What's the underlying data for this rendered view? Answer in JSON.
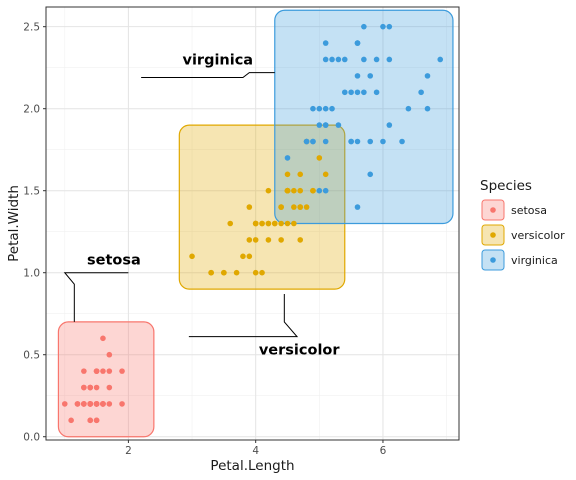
{
  "chart_data": {
    "type": "scatter",
    "xlabel": "Petal.Length",
    "ylabel": "Petal.Width",
    "xlim": [
      0.705,
      7.195
    ],
    "ylim": [
      -0.02,
      2.62
    ],
    "x_ticks": [
      2,
      4,
      6
    ],
    "y_ticks": [
      0.0,
      0.5,
      1.0,
      1.5,
      2.0,
      2.5
    ],
    "x_tick_labels": [
      "2",
      "4",
      "6"
    ],
    "y_tick_labels": [
      "0.0",
      "0.5",
      "1.0",
      "1.5",
      "2.0",
      "2.5"
    ],
    "grid": true,
    "legend_position": "right",
    "legend_title": "Species",
    "series": [
      {
        "name": "setosa",
        "color": "#F8766D",
        "x": [
          1.4,
          1.4,
          1.3,
          1.5,
          1.4,
          1.7,
          1.4,
          1.5,
          1.4,
          1.5,
          1.5,
          1.6,
          1.4,
          1.1,
          1.2,
          1.5,
          1.3,
          1.4,
          1.7,
          1.5,
          1.7,
          1.5,
          1.0,
          1.7,
          1.9,
          1.6,
          1.6,
          1.5,
          1.4,
          1.6,
          1.6,
          1.5,
          1.5,
          1.4,
          1.5,
          1.2,
          1.3,
          1.4,
          1.3,
          1.5,
          1.3,
          1.3,
          1.3,
          1.6,
          1.9,
          1.4,
          1.6,
          1.4,
          1.5,
          1.4
        ],
        "y": [
          0.2,
          0.2,
          0.2,
          0.2,
          0.2,
          0.4,
          0.3,
          0.2,
          0.2,
          0.1,
          0.2,
          0.2,
          0.1,
          0.1,
          0.2,
          0.4,
          0.4,
          0.3,
          0.3,
          0.3,
          0.2,
          0.4,
          0.2,
          0.5,
          0.2,
          0.2,
          0.4,
          0.2,
          0.2,
          0.2,
          0.2,
          0.4,
          0.1,
          0.2,
          0.2,
          0.2,
          0.2,
          0.1,
          0.2,
          0.2,
          0.3,
          0.3,
          0.2,
          0.6,
          0.4,
          0.3,
          0.2,
          0.2,
          0.2,
          0.2
        ],
        "hull_box": {
          "x": [
            0.9,
            2.4
          ],
          "y": [
            0.0,
            0.7
          ]
        }
      },
      {
        "name": "versicolor",
        "color": "#E0A800",
        "x": [
          4.7,
          4.5,
          4.9,
          4.0,
          4.6,
          4.5,
          4.7,
          3.3,
          4.6,
          3.9,
          3.5,
          4.2,
          4.0,
          4.7,
          3.6,
          4.4,
          4.5,
          4.1,
          4.5,
          3.9,
          4.8,
          4.0,
          4.9,
          4.7,
          4.3,
          4.4,
          4.8,
          5.0,
          4.5,
          3.5,
          3.8,
          3.7,
          3.9,
          5.1,
          4.5,
          4.5,
          4.7,
          4.4,
          4.1,
          4.0,
          4.4,
          4.6,
          4.0,
          3.3,
          4.2,
          4.2,
          4.2,
          4.3,
          3.0,
          4.1
        ],
        "y": [
          1.4,
          1.5,
          1.5,
          1.3,
          1.5,
          1.3,
          1.6,
          1.0,
          1.3,
          1.4,
          1.0,
          1.5,
          1.0,
          1.4,
          1.3,
          1.4,
          1.5,
          1.0,
          1.5,
          1.1,
          1.8,
          1.3,
          1.5,
          1.2,
          1.3,
          1.4,
          1.4,
          1.7,
          1.5,
          1.0,
          1.1,
          1.0,
          1.2,
          1.6,
          1.5,
          1.6,
          1.5,
          1.3,
          1.3,
          1.3,
          1.2,
          1.4,
          1.2,
          1.0,
          1.3,
          1.2,
          1.3,
          1.3,
          1.1,
          1.3
        ],
        "hull_box": {
          "x": [
            2.8,
            5.4
          ],
          "y": [
            0.9,
            1.9
          ]
        }
      },
      {
        "name": "virginica",
        "color": "#3C9BDC",
        "x": [
          6.0,
          5.1,
          5.9,
          5.6,
          5.8,
          6.6,
          4.5,
          6.3,
          5.8,
          6.1,
          5.1,
          5.3,
          5.5,
          5.0,
          5.1,
          5.3,
          5.5,
          6.7,
          6.9,
          5.0,
          5.7,
          4.9,
          6.7,
          4.9,
          5.7,
          6.0,
          4.8,
          4.9,
          5.6,
          5.8,
          6.1,
          6.4,
          5.6,
          5.1,
          5.6,
          6.1,
          5.6,
          5.5,
          4.8,
          5.4,
          5.6,
          5.1,
          5.1,
          5.9,
          5.7,
          5.2,
          5.0,
          5.2,
          5.4,
          5.1
        ],
        "y": [
          2.5,
          1.9,
          2.1,
          1.8,
          2.2,
          2.1,
          1.7,
          1.8,
          1.8,
          2.5,
          2.0,
          1.9,
          2.1,
          2.0,
          2.4,
          2.3,
          1.8,
          2.2,
          2.3,
          1.5,
          2.3,
          2.0,
          2.0,
          1.8,
          2.1,
          1.8,
          1.8,
          1.8,
          2.1,
          1.6,
          1.9,
          2.0,
          2.2,
          1.5,
          1.4,
          2.3,
          2.4,
          1.8,
          1.8,
          2.1,
          2.4,
          2.3,
          1.9,
          2.3,
          2.5,
          2.3,
          1.9,
          2.0,
          2.3,
          1.8
        ],
        "hull_box": {
          "x": [
            4.3,
            7.1
          ],
          "y": [
            1.3,
            2.6
          ]
        }
      }
    ],
    "annotations": [
      {
        "text": "setosa",
        "label_at": [
          1.35,
          1.05
        ],
        "leader": [
          [
            2.0,
            1.0
          ],
          [
            1.0,
            1.0
          ],
          [
            1.15,
            0.93
          ],
          [
            1.15,
            0.7
          ]
        ]
      },
      {
        "text": "versicolor",
        "label_at": [
          4.05,
          0.5
        ],
        "leader": [
          [
            2.95,
            0.61
          ],
          [
            4.65,
            0.61
          ],
          [
            4.45,
            0.7
          ],
          [
            4.45,
            0.87
          ]
        ]
      },
      {
        "text": "virginica",
        "label_at": [
          2.85,
          2.27
        ],
        "leader": [
          [
            2.2,
            2.19
          ],
          [
            3.8,
            2.19
          ],
          [
            3.9,
            2.22
          ],
          [
            4.3,
            2.22
          ]
        ]
      }
    ]
  }
}
